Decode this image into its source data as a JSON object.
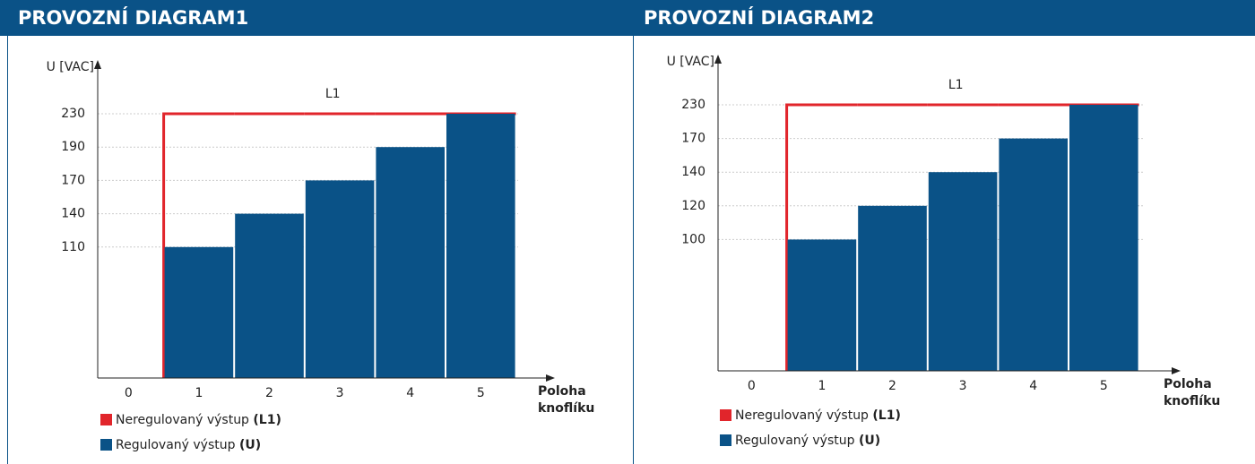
{
  "chart_data": [
    {
      "type": "bar",
      "title": "PROVOZNÍ DIAGRAM1",
      "ylabel": "U [VAC]",
      "xlabel": [
        "Poloha",
        "knoflíku"
      ],
      "annotation": "L1",
      "categories": [
        "0",
        "1",
        "2",
        "3",
        "4",
        "5"
      ],
      "series": [
        {
          "name": "Neregulovaný výstup",
          "code": "(L1)",
          "color": "#e1252b",
          "kind": "step",
          "values": [
            null,
            230,
            230,
            230,
            230,
            230
          ]
        },
        {
          "name": "Regulovaný výstup",
          "code": "(U)",
          "color": "#0a5287",
          "kind": "bar",
          "values": [
            null,
            110,
            140,
            170,
            190,
            230
          ]
        }
      ],
      "ylim": [
        0,
        230
      ],
      "yticks": [
        110,
        140,
        170,
        190,
        230
      ],
      "grid": true
    },
    {
      "type": "bar",
      "title": "PROVOZNÍ DIAGRAM2",
      "ylabel": "U [VAC]",
      "xlabel": [
        "Poloha",
        "knoflíku"
      ],
      "annotation": "L1",
      "categories": [
        "0",
        "1",
        "2",
        "3",
        "4",
        "5"
      ],
      "series": [
        {
          "name": "Neregulovaný výstup",
          "code": "(L1)",
          "color": "#e1252b",
          "kind": "step",
          "values": [
            null,
            230,
            230,
            230,
            230,
            230
          ]
        },
        {
          "name": "Regulovaný výstup",
          "code": "(U)",
          "color": "#0a5287",
          "kind": "bar",
          "values": [
            null,
            100,
            120,
            140,
            170,
            230
          ]
        }
      ],
      "ylim": [
        0,
        230
      ],
      "yticks": [
        100,
        120,
        140,
        170,
        230
      ],
      "grid": true
    }
  ]
}
